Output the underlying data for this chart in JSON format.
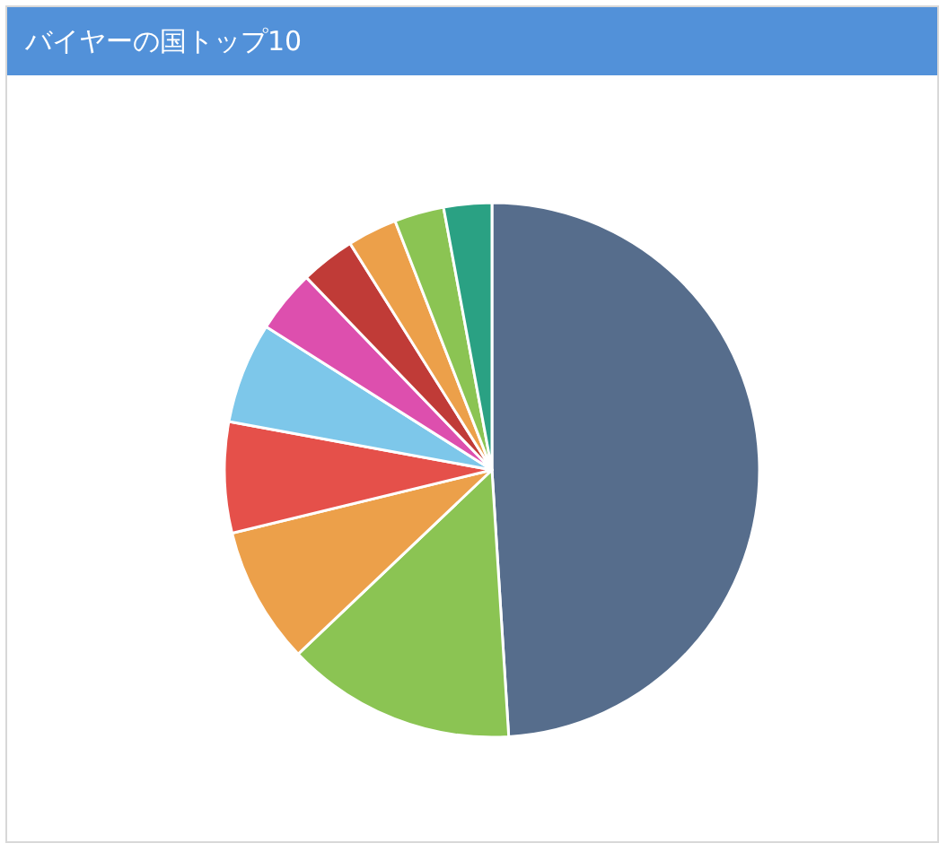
{
  "chart_data": {
    "type": "pie",
    "title": "バイヤーの国トップ10",
    "categories": [
      null,
      null,
      null,
      null,
      null,
      null,
      null,
      null,
      null,
      null
    ],
    "values": [
      49,
      13.9,
      8.3,
      6.7,
      6.1,
      3.8,
      3.3,
      3.0,
      3.0,
      2.9
    ],
    "colors": [
      "#566d8c",
      "#8bc453",
      "#eca04a",
      "#e5504a",
      "#7dc7ea",
      "#dd4fae",
      "#c03b37",
      "#eca04a",
      "#8bc453",
      "#2aa183"
    ]
  }
}
